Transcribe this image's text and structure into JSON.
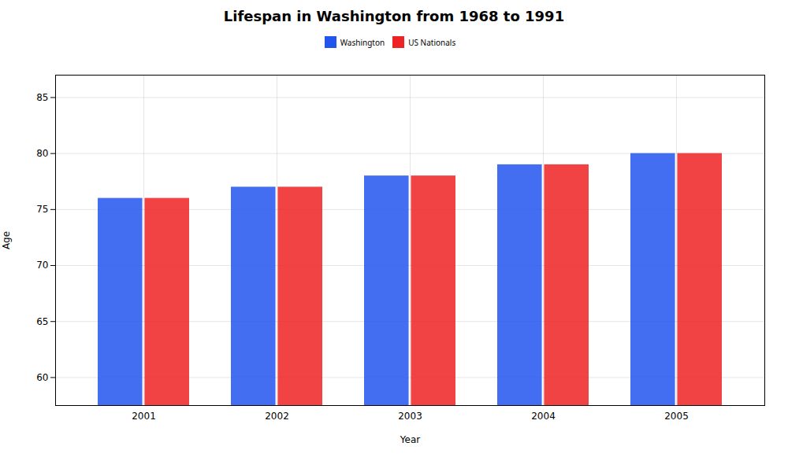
{
  "chart_data": {
    "type": "bar",
    "title": "Lifespan in Washington from 1968 to 1991",
    "xlabel": "Year",
    "ylabel": "Age",
    "categories": [
      "2001",
      "2002",
      "2003",
      "2004",
      "2005"
    ],
    "series": [
      {
        "name": "Washington",
        "color": "#2255ee",
        "values": [
          76,
          77,
          78,
          79,
          80
        ]
      },
      {
        "name": "US Nationals",
        "color": "#ee2222",
        "values": [
          76,
          77,
          78,
          79,
          80
        ]
      }
    ],
    "ylim": [
      57.5,
      87
    ],
    "yticks": [
      60,
      65,
      70,
      75,
      80,
      85
    ],
    "grid": true,
    "legend": "top"
  }
}
